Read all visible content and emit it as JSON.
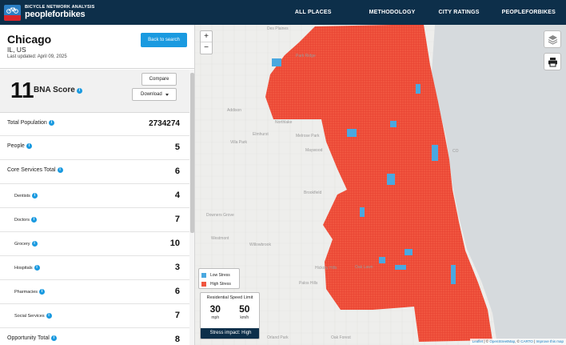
{
  "brand": {
    "small": "BICYCLE NETWORK ANALYSIS",
    "big": "peopleforbikes"
  },
  "nav": [
    "ALL PLACES",
    "METHODOLOGY",
    "CITY RATINGS",
    "PEOPLEFORBIKES"
  ],
  "city": {
    "name": "Chicago",
    "state": "IL, US",
    "updated": "Last updated: April 09, 2025",
    "back_label": "Back to search"
  },
  "score": {
    "value": "11",
    "label": "BNA Score",
    "compare_label": "Compare",
    "download_label": "Download"
  },
  "rows": [
    {
      "label": "Total Population",
      "value": "2734274",
      "kind": "total"
    },
    {
      "label": "People",
      "value": "5",
      "kind": "top"
    },
    {
      "label": "Core Services Total",
      "value": "6",
      "kind": "top"
    },
    {
      "label": "Dentists",
      "value": "4",
      "kind": "sub"
    },
    {
      "label": "Doctors",
      "value": "7",
      "kind": "sub"
    },
    {
      "label": "Grocery",
      "value": "10",
      "kind": "sub"
    },
    {
      "label": "Hospitals",
      "value": "3",
      "kind": "sub"
    },
    {
      "label": "Pharmacies",
      "value": "6",
      "kind": "sub"
    },
    {
      "label": "Social Services",
      "value": "7",
      "kind": "sub"
    },
    {
      "label": "Opportunity Total",
      "value": "8",
      "kind": "top"
    }
  ],
  "map": {
    "towns": [
      "Des Plaines",
      "Park Ridge",
      "Addison",
      "Northlake",
      "Villa Park",
      "Elmhurst",
      "Melrose Park",
      "Maywood",
      "Brookfield",
      "Downers Grove",
      "Westmont",
      "Willowbrook",
      "Hickory Hills",
      "Oak Lawn",
      "Palos Hills",
      "Orland Park",
      "Oak Forest",
      "CO"
    ],
    "legend": [
      {
        "label": "Low Stress",
        "color": "#4aa8e0"
      },
      {
        "label": "High Stress",
        "color": "#f0553f"
      }
    ],
    "speed": {
      "title": "Residential Speed Limit",
      "mph": "30",
      "mph_unit": "mph",
      "kmh": "50",
      "kmh_unit": "km/h",
      "impact": "Stress impact: High"
    },
    "attribution": {
      "leaflet": "Leaflet",
      "osm": "OpenStreetMap",
      "carto": "CARTO",
      "improve": "Improve this map"
    }
  },
  "colors": {
    "nav_bg": "#0d2f4a",
    "accent": "#1a9ae0",
    "high_stress": "#f0553f",
    "low_stress": "#4aa8e0",
    "lake": "#d6dadd"
  }
}
